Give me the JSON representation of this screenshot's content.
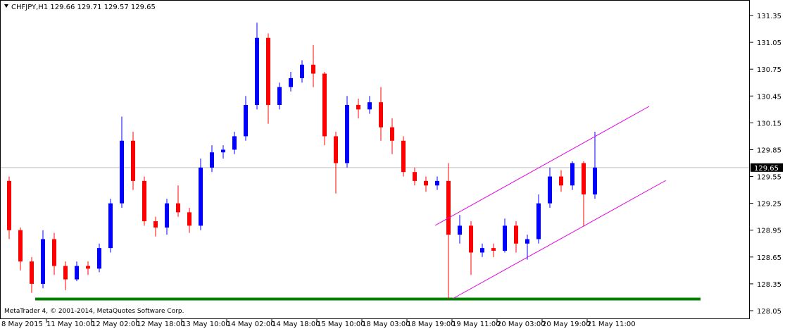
{
  "chart_data": {
    "type": "candlestick",
    "title": "CHFJPY,H1  129.66 129.71 129.57 129.65",
    "footer": "MetaTrader 4, © 2001-2014, MetaQuotes Software Corp.",
    "bull_color": "#0000ff",
    "bear_color": "#ff0000",
    "open": [
      129.5,
      128.95,
      128.6,
      128.35,
      128.85,
      128.55,
      128.4,
      128.55,
      128.52,
      128.75,
      129.25,
      129.95,
      129.5,
      129.05,
      128.98,
      129.25,
      129.15,
      129.0,
      129.65,
      129.82,
      129.85,
      130.0,
      130.35,
      131.1,
      130.35,
      130.55,
      130.65,
      130.8,
      130.7,
      130.0,
      129.7,
      130.35,
      130.3,
      130.38,
      130.1,
      129.95,
      129.6,
      129.5,
      129.45,
      129.5,
      128.9,
      129.0,
      128.7,
      128.75,
      128.72,
      129.0,
      128.8,
      128.85,
      129.25,
      129.55,
      129.45,
      129.7,
      129.35
    ],
    "high": [
      129.55,
      128.98,
      128.65,
      128.95,
      128.92,
      128.6,
      128.6,
      128.6,
      128.8,
      129.3,
      130.22,
      130.05,
      129.55,
      129.1,
      129.3,
      129.45,
      129.2,
      129.75,
      129.9,
      129.9,
      130.05,
      130.45,
      131.27,
      131.15,
      130.6,
      130.72,
      130.85,
      131.02,
      130.72,
      130.05,
      130.45,
      130.42,
      130.45,
      130.55,
      130.2,
      130.0,
      129.65,
      129.55,
      129.55,
      129.7,
      129.12,
      129.05,
      128.8,
      128.8,
      129.08,
      129.05,
      128.9,
      129.35,
      129.65,
      129.62,
      129.72,
      129.72,
      130.05
    ],
    "low": [
      128.85,
      128.5,
      128.25,
      128.3,
      128.45,
      128.28,
      128.38,
      128.45,
      128.48,
      128.7,
      129.2,
      129.4,
      129.0,
      128.88,
      128.9,
      129.1,
      128.92,
      128.95,
      129.6,
      129.75,
      129.8,
      129.95,
      130.3,
      130.14,
      130.3,
      130.5,
      130.6,
      130.55,
      129.9,
      129.36,
      129.65,
      130.2,
      130.25,
      129.95,
      129.8,
      129.55,
      129.45,
      129.38,
      129.4,
      128.18,
      128.8,
      128.45,
      128.65,
      128.65,
      128.7,
      128.7,
      128.62,
      128.8,
      129.2,
      129.38,
      129.4,
      128.99,
      129.3
    ],
    "close": [
      128.95,
      128.6,
      128.35,
      128.85,
      128.55,
      128.4,
      128.55,
      128.52,
      128.75,
      129.25,
      129.95,
      129.5,
      129.05,
      128.98,
      129.25,
      129.15,
      129.0,
      129.65,
      129.82,
      129.85,
      130.0,
      130.35,
      131.1,
      130.35,
      130.55,
      130.65,
      130.8,
      130.7,
      130.0,
      129.7,
      130.35,
      130.3,
      130.38,
      130.1,
      129.95,
      129.6,
      129.5,
      129.45,
      129.5,
      128.9,
      129.0,
      128.7,
      128.75,
      128.72,
      129.0,
      128.8,
      128.85,
      129.25,
      129.55,
      129.45,
      129.7,
      129.35,
      129.65
    ],
    "last_price": 129.65,
    "support_level": 128.18,
    "ylim": [
      128.05,
      131.35
    ],
    "yticks": [
      128.05,
      128.35,
      128.65,
      128.95,
      129.25,
      129.55,
      129.85,
      130.15,
      130.45,
      130.75,
      131.05,
      131.35
    ],
    "xlabels": [
      "8 May 2015",
      "11 May 10:00",
      "12 May 02:00",
      "12 May 18:00",
      "13 May 10:00",
      "14 May 02:00",
      "14 May 18:00",
      "15 May 10:00",
      "18 May 03:00",
      "18 May 19:00",
      "19 May 11:00",
      "20 May 03:00",
      "20 May 19:00",
      "21 May 11:00"
    ]
  }
}
